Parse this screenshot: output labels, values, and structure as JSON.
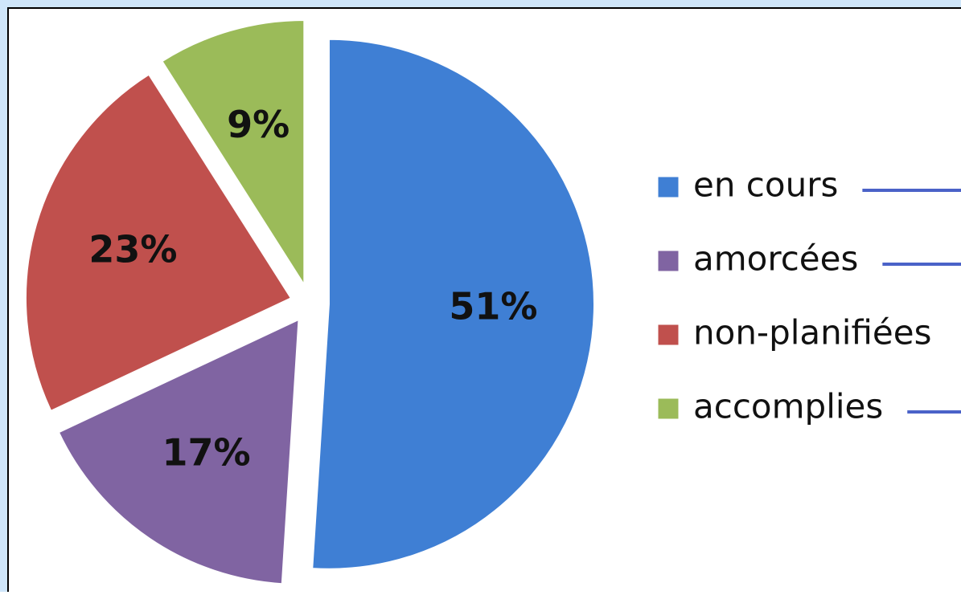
{
  "chart_data": {
    "type": "pie",
    "categories": [
      "en cours",
      "amorcées",
      "non-planifiées",
      "accomplies"
    ],
    "values": [
      51,
      17,
      23,
      9
    ],
    "value_labels": [
      "51%",
      "17%",
      "23%",
      "9%"
    ],
    "colors": [
      "#3f7fd4",
      "#8064a2",
      "#c0504d",
      "#9bbb59"
    ],
    "legend": "right"
  }
}
